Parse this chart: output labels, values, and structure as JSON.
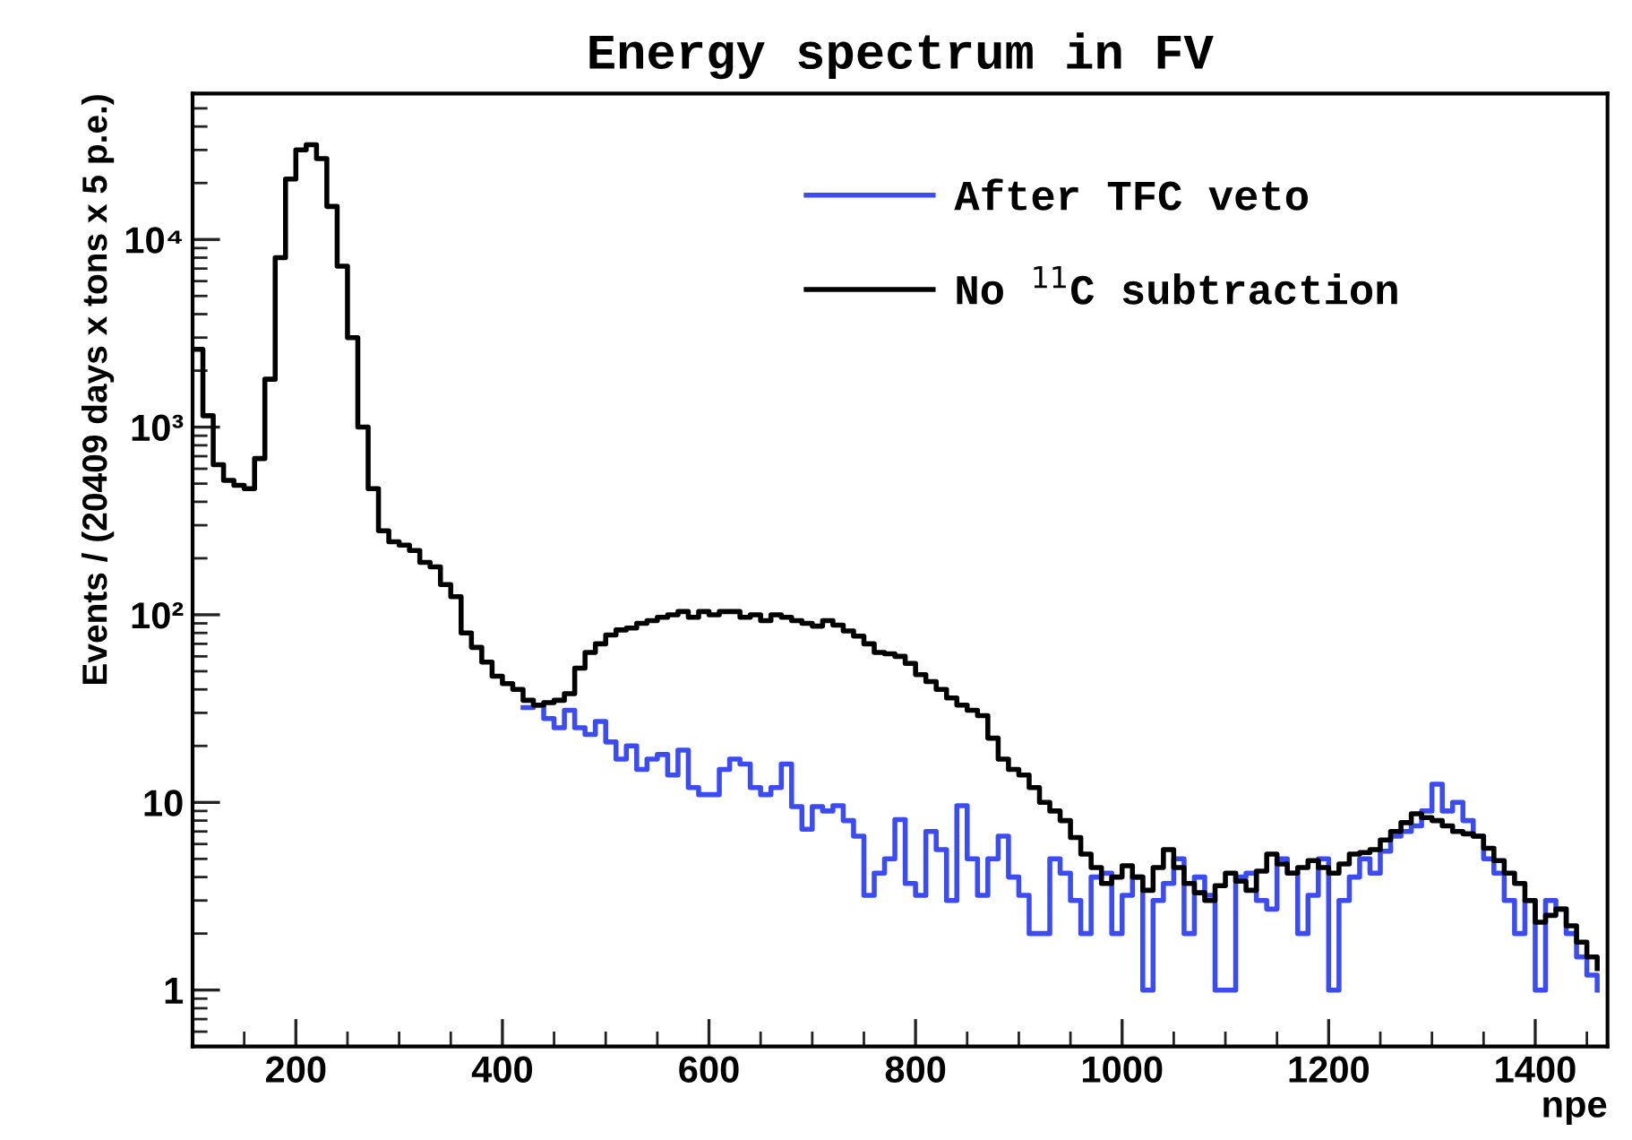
{
  "chart_data": {
    "type": "step",
    "title": "Energy spectrum in FV",
    "xlabel": "npe",
    "ylabel": "Events / (20409 days x tons x 5 p.e.)",
    "log": "y",
    "grid": false,
    "legend": "top right",
    "xlim": [
      100,
      1470
    ],
    "xticks": [
      200,
      400,
      600,
      800,
      1000,
      1200,
      1400
    ],
    "ylim": [
      0.5,
      60000
    ],
    "yticks": [
      1,
      10,
      {
        "value": 100,
        "label": "10²"
      },
      {
        "value": 1000,
        "label": "10³"
      },
      {
        "value": 10000,
        "label": "10⁴"
      }
    ],
    "x": [
      100,
      110,
      120,
      130,
      140,
      150,
      160,
      170,
      180,
      190,
      200,
      210,
      220,
      230,
      240,
      250,
      260,
      270,
      280,
      290,
      300,
      310,
      320,
      330,
      340,
      350,
      360,
      370,
      380,
      390,
      400,
      410,
      420,
      430,
      440,
      450,
      460,
      470,
      480,
      490,
      500,
      510,
      520,
      530,
      540,
      550,
      560,
      570,
      580,
      590,
      600,
      610,
      620,
      630,
      640,
      650,
      660,
      670,
      680,
      690,
      700,
      710,
      720,
      730,
      740,
      750,
      760,
      770,
      780,
      790,
      800,
      810,
      820,
      830,
      840,
      850,
      860,
      870,
      880,
      890,
      900,
      910,
      920,
      930,
      940,
      950,
      960,
      970,
      980,
      990,
      1000,
      1010,
      1020,
      1030,
      1040,
      1050,
      1060,
      1070,
      1080,
      1090,
      1100,
      1110,
      1120,
      1130,
      1140,
      1150,
      1160,
      1170,
      1180,
      1190,
      1200,
      1210,
      1220,
      1230,
      1240,
      1250,
      1260,
      1270,
      1280,
      1290,
      1300,
      1310,
      1320,
      1330,
      1340,
      1350,
      1360,
      1370,
      1380,
      1390,
      1400,
      1410,
      1420,
      1430,
      1440,
      1450,
      1460
    ],
    "series": [
      {
        "name": "After TFC veto",
        "color": "#3b4cf5",
        "values": [
          null,
          null,
          null,
          null,
          null,
          null,
          null,
          null,
          null,
          null,
          null,
          null,
          null,
          null,
          null,
          null,
          null,
          null,
          null,
          null,
          null,
          null,
          null,
          null,
          null,
          null,
          null,
          null,
          null,
          null,
          null,
          null,
          32,
          33,
          28,
          25,
          31,
          25,
          23,
          27,
          21,
          17,
          20,
          15,
          17,
          18,
          14,
          19,
          12,
          11,
          11,
          15,
          17,
          16,
          12,
          11,
          12,
          16,
          9.5,
          7.2,
          9.5,
          9,
          9.6,
          8,
          6.6,
          3.2,
          4.2,
          5,
          8.1,
          3.7,
          3.2,
          7,
          5.6,
          3,
          9.6,
          5,
          3.2,
          5,
          6.6,
          4,
          3.2,
          2,
          2,
          5,
          4.2,
          3,
          2,
          4,
          4.2,
          2,
          3.2,
          4,
          1,
          3,
          3.7,
          5,
          2,
          4,
          3.2,
          1,
          1,
          4,
          4.2,
          3,
          2.7,
          5,
          4.2,
          2,
          3.2,
          5,
          1,
          3,
          4,
          5,
          4.2,
          5.5,
          6.6,
          7,
          7.5,
          9,
          12.5,
          9,
          10,
          8,
          6.6,
          5,
          4.2,
          3,
          2,
          3,
          1,
          3,
          2.7,
          2,
          1.5,
          1.2,
          1
        ]
      },
      {
        "name": "No $^{11}$C subtraction",
        "color": "#000000",
        "values": [
          2600,
          1150,
          630,
          520,
          490,
          470,
          680,
          1800,
          8000,
          21000,
          30000,
          32000,
          27000,
          15000,
          7200,
          3000,
          1000,
          470,
          280,
          245,
          235,
          220,
          190,
          180,
          145,
          125,
          80,
          67,
          56,
          47,
          43,
          40,
          35,
          33,
          34,
          35,
          38,
          52,
          63,
          70,
          78,
          83,
          85,
          90,
          93,
          97,
          100,
          104,
          97,
          104,
          100,
          104,
          104,
          97,
          100,
          93,
          100,
          97,
          93,
          90,
          87,
          93,
          88,
          82,
          77,
          70,
          63,
          62,
          60,
          55,
          48,
          44,
          40,
          36,
          33,
          31,
          29,
          22,
          17,
          15,
          14,
          12,
          10,
          9,
          8,
          6.5,
          5.3,
          4.5,
          3.7,
          4,
          4.6,
          4,
          3.4,
          4.5,
          5.6,
          4.5,
          3.7,
          3.3,
          3.0,
          3.6,
          4.2,
          3.8,
          3.4,
          4.3,
          5.3,
          4.7,
          4.2,
          4.5,
          4.9,
          4.5,
          4.2,
          4.7,
          5.3,
          5.4,
          5.6,
          6.3,
          7,
          7.8,
          8.7,
          8.3,
          8,
          7.5,
          7,
          6.8,
          6.6,
          5.7,
          4.9,
          4.2,
          3.7,
          3,
          2.3,
          2.5,
          2.7,
          2.2,
          1.8,
          1.5,
          1.3
        ]
      }
    ]
  }
}
